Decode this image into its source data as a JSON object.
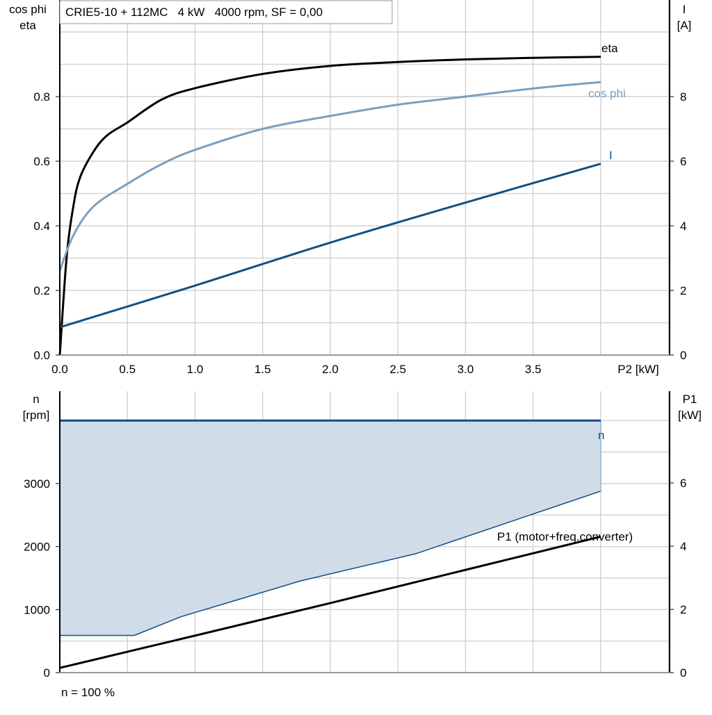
{
  "chart_data": [
    {
      "type": "line",
      "title": "CRIE5-10 + 112MC   4 kW   4000 rpm, SF = 0,00",
      "xlabel": "P2 [kW]",
      "ylabel_left": [
        "cos phi",
        "eta"
      ],
      "ylabel_right": [
        "I",
        "[A]"
      ],
      "xlim": [
        0,
        4.5
      ],
      "ylim_left": [
        0,
        1.0
      ],
      "ylim_right": [
        0,
        10
      ],
      "x_ticks": [
        "0.0",
        "0.5",
        "1.0",
        "1.5",
        "2.0",
        "2.5",
        "3.0",
        "3.5"
      ],
      "y_ticks_left": [
        "0.0",
        "0.2",
        "0.4",
        "0.6",
        "0.8"
      ],
      "y_ticks_right": [
        "0",
        "2",
        "4",
        "6",
        "8"
      ],
      "grid": true,
      "series": [
        {
          "name": "eta",
          "axis": "left",
          "color": "#000000",
          "x": [
            0,
            0.05,
            0.1,
            0.15,
            0.25,
            0.35,
            0.5,
            0.75,
            1.0,
            1.5,
            2.0,
            2.5,
            3.0,
            3.5,
            4.0
          ],
          "y": [
            0,
            0.3,
            0.46,
            0.55,
            0.63,
            0.68,
            0.72,
            0.79,
            0.826,
            0.87,
            0.895,
            0.907,
            0.915,
            0.92,
            0.923
          ]
        },
        {
          "name": "cos phi",
          "axis": "left",
          "color": "#7a9fc0",
          "x": [
            0,
            0.1,
            0.25,
            0.5,
            0.75,
            1.0,
            1.5,
            2.0,
            2.5,
            3.0,
            3.5,
            4.0
          ],
          "y": [
            0.26,
            0.37,
            0.46,
            0.53,
            0.59,
            0.635,
            0.7,
            0.74,
            0.775,
            0.8,
            0.825,
            0.845
          ]
        },
        {
          "name": "I",
          "axis": "right",
          "color": "#144f80",
          "x": [
            0,
            1,
            2,
            3,
            4
          ],
          "y": [
            0.86,
            2.15,
            3.48,
            4.72,
            5.92
          ]
        }
      ]
    },
    {
      "type": "area",
      "ylabel_left": [
        "n",
        "[rpm]"
      ],
      "ylabel_right": [
        "P1",
        "[kW]"
      ],
      "xlim": [
        0,
        4.5
      ],
      "ylim_left": [
        0,
        4500
      ],
      "ylim_right": [
        0,
        9
      ],
      "y_ticks_left": [
        "0",
        "1000",
        "2000",
        "3000"
      ],
      "y_ticks_right": [
        "0",
        "2",
        "4",
        "6"
      ],
      "grid": true,
      "footer": "n = 100 %",
      "n_area": {
        "name": "n",
        "color": "#0e4c85",
        "fill": "#d0dce8",
        "upper": {
          "x": [
            0,
            4
          ],
          "y": [
            4000,
            4000
          ]
        },
        "lower": {
          "x": [
            0,
            0.55,
            0.9,
            1.78,
            2.63,
            4.0
          ],
          "y": [
            590,
            590,
            890,
            1455,
            1885,
            2880
          ]
        }
      },
      "series": [
        {
          "name": "P1 (motor+freq.converter)",
          "axis": "right",
          "color": "#000000",
          "x": [
            0,
            1,
            2,
            3,
            4
          ],
          "y": [
            0.15,
            1.17,
            2.2,
            3.25,
            4.3
          ]
        }
      ]
    }
  ]
}
